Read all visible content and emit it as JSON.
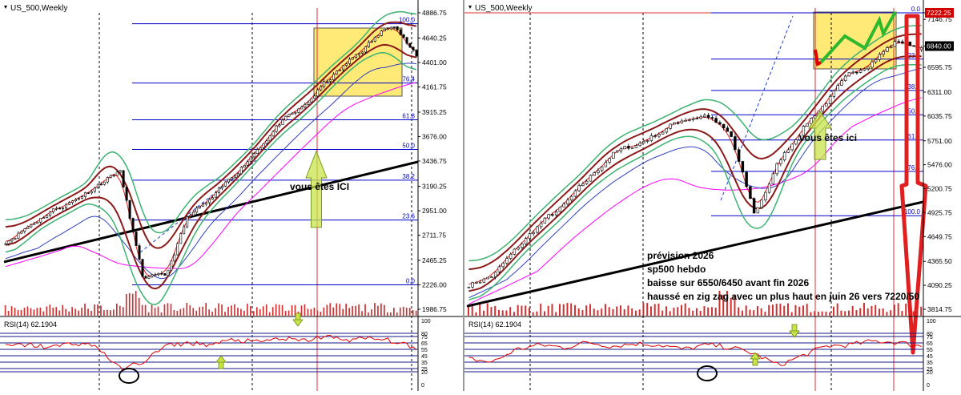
{
  "charts": [
    {
      "id": "left",
      "title": "US_500,Weekly",
      "price_axis": [
        "4886.75",
        "4640.25",
        "4401.00",
        "4161.75",
        "3915.25",
        "3676.00",
        "3436.75",
        "3190.25",
        "2951.00",
        "2711.75",
        "2465.25",
        "2226.00",
        "1986.75"
      ],
      "fib_levels": [
        "100.0",
        "76.4",
        "61.8",
        "50.0",
        "38.2",
        "23.6",
        "0.0"
      ],
      "annotations": [
        "vous êtes ICI"
      ],
      "rsi_title": "RSI(14) 62.1904",
      "rsi_axis": [
        "100",
        "80",
        "75",
        "65",
        "55",
        "45",
        "35",
        "25",
        "20",
        "0"
      ]
    },
    {
      "id": "right",
      "title": "US_500,Weekly",
      "price_axis": [
        "7222.25",
        "7146.75",
        "6840.00",
        "6595.75",
        "6311.00",
        "6035.75",
        "5751.00",
        "5476.00",
        "5200.75",
        "4925.75",
        "4649.75",
        "4365.50",
        "4090.25",
        "3814.75"
      ],
      "fib_levels": [
        "0.0",
        "23.6",
        "38.2",
        "50.0",
        "61.8",
        "76.4",
        "100.0"
      ],
      "annotations": [
        "vous êtes ici"
      ],
      "forecast_text": [
        "prévision 2026",
        "sp500 hebdo",
        "baisse sur 6550/6450 avant fin 2026",
        "haussé en zig zag avec un plus haut en juin 26 vers 7220/50"
      ],
      "rsi_title": "RSI(14) 62.1904",
      "rsi_axis": [
        "100",
        "80",
        "75",
        "65",
        "55",
        "45",
        "35",
        "25",
        "20",
        "0"
      ]
    }
  ],
  "chart_data": [
    {
      "type": "candlestick",
      "title": "US_500,Weekly",
      "ylim": [
        1986.75,
        4886.75
      ],
      "y_ticks": [
        4886.75,
        4640.25,
        4401.0,
        4161.75,
        3915.25,
        3676.0,
        3436.75,
        3190.25,
        2951.0,
        2711.75,
        2465.25,
        2226.0,
        1986.75
      ],
      "fibonacci": {
        "100.0": 4780,
        "76.4": 4200,
        "61.8": 3840,
        "50.0": 3550,
        "38.2": 3250,
        "23.6": 2860,
        "0.0": 2226
      },
      "rsi": {
        "period": 14,
        "last": 62.1904,
        "levels": [
          80,
          75,
          65,
          55,
          45,
          35,
          25,
          20
        ]
      },
      "colors": {
        "candle": "#008000",
        "fib": "#0000ff",
        "bollinger": "#3cb371",
        "keltner": "#8b0000",
        "ma200": "#000000",
        "ma_pink": "#ff00ff",
        "highlight": "#ffd700",
        "rsi": "#ff0000"
      }
    },
    {
      "type": "candlestick",
      "title": "US_500,Weekly",
      "ylim": [
        3814.75,
        7222.25
      ],
      "y_ticks": [
        7222.25,
        7146.75,
        6840.0,
        6595.75,
        6311.0,
        6035.75,
        5751.0,
        5476.0,
        5200.75,
        4925.75,
        4649.75,
        4365.5,
        4090.25,
        3814.75
      ],
      "fibonacci": {
        "0.0": 7222.25,
        "23.6": 6690,
        "38.2": 6330,
        "50.0": 6050,
        "61.8": 5760,
        "76.4": 5400,
        "100.0": 4890
      },
      "rsi": {
        "period": 14,
        "last": 62.1904,
        "levels": [
          80,
          75,
          65,
          55,
          45,
          35,
          25,
          20
        ]
      },
      "colors": {
        "candle": "#008000",
        "fib": "#0000ff",
        "bollinger": "#3cb371",
        "keltner": "#8b0000",
        "ma200": "#000000",
        "ma_pink": "#ff00ff",
        "highlight": "#ffd700",
        "rsi": "#ff0000",
        "forecast": "#32cd32"
      }
    }
  ]
}
